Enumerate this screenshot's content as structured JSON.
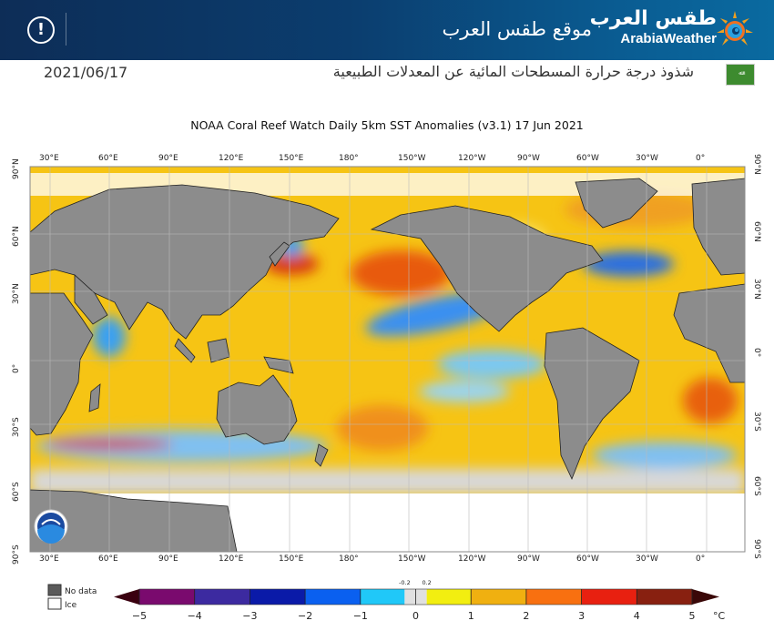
{
  "header": {
    "alert_icon": "exclamation-circle-icon",
    "site_name": "موقع طقس العرب",
    "logo_arabic": "طقس العرب",
    "logo_english": "ArabiaWeather",
    "brand_color": "#0b3d6e"
  },
  "subheader": {
    "date": "2021/06/17",
    "title": "شذوذ درجة حرارة المسطحات المائية عن المعدلات الطبيعية",
    "flag_icon": "saudi-flag-icon"
  },
  "chart_data": {
    "type": "heatmap",
    "title": "NOAA Coral Reef Watch Daily 5km SST Anomalies  (v3.1)   17 Jun 2021",
    "x_tick_labels": [
      "30°E",
      "60°E",
      "90°E",
      "120°E",
      "150°E",
      "180°",
      "150°W",
      "120°W",
      "90°W",
      "60°W",
      "30°W",
      "0°"
    ],
    "y_tick_labels": [
      "90°N",
      "60°N",
      "30°N",
      "0°",
      "30°S",
      "60°S",
      "90°S"
    ],
    "legend": {
      "no_data": "No data",
      "ice": "Ice",
      "no_data_color": "#5a5a5a",
      "ice_color": "#ffffff"
    },
    "colorbar": {
      "ticks": [
        "−5",
        "−4",
        "−3",
        "−2",
        "−1",
        "0",
        "1",
        "2",
        "3",
        "4",
        "5"
      ],
      "minor_ticks": [
        "-0.2",
        "0.2"
      ],
      "unit": "°C",
      "range": [
        -5,
        5
      ],
      "colors": [
        "#3a0010",
        "#7a0a6e",
        "#3c2aa0",
        "#0a1aa8",
        "#0a60f0",
        "#20c8f8",
        "#e0e0e0",
        "#f2ee10",
        "#f0b010",
        "#f87010",
        "#e82010",
        "#882010",
        "#3a0808"
      ]
    }
  }
}
